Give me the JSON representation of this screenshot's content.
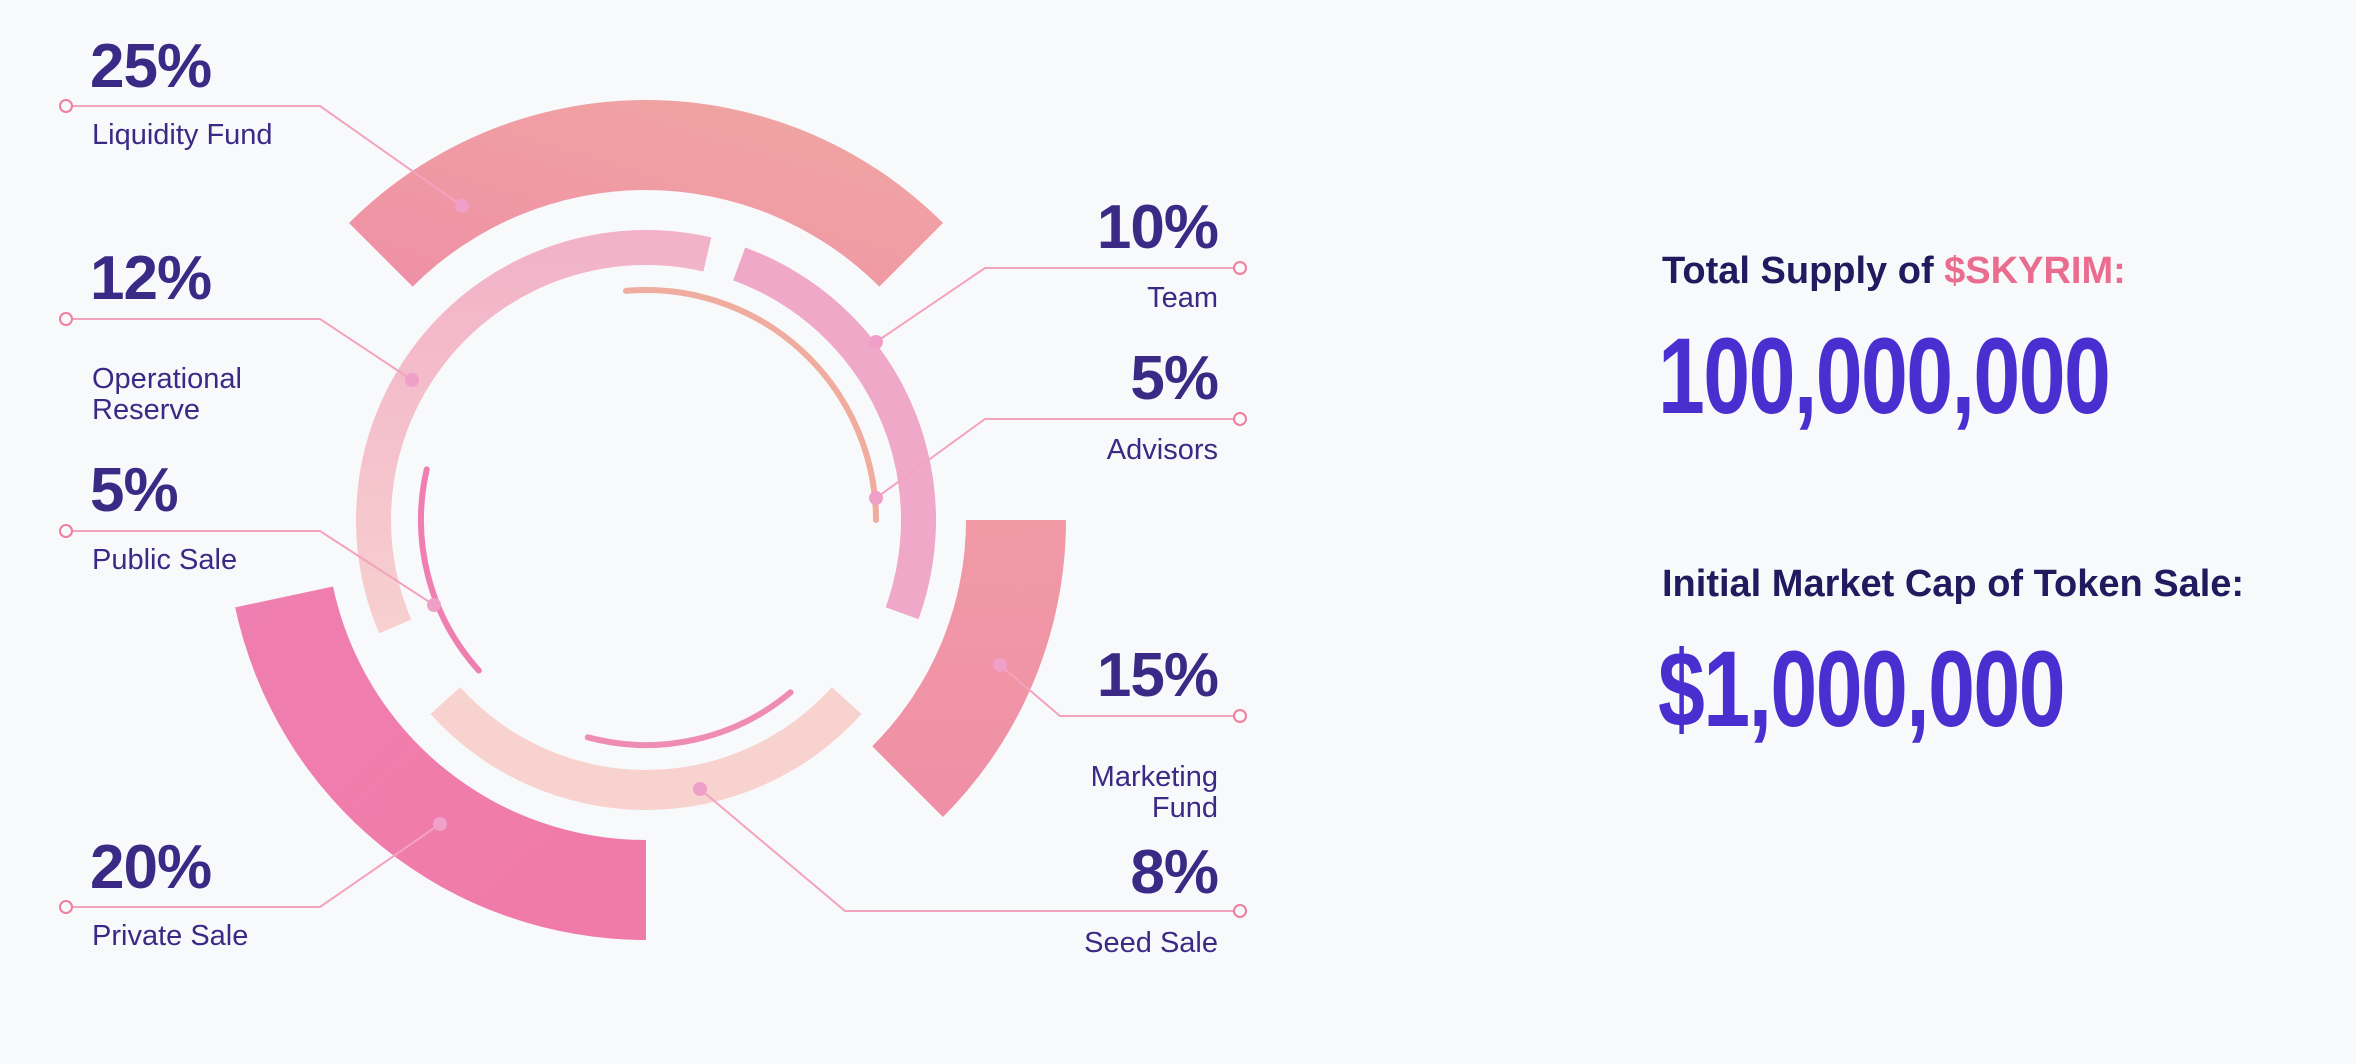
{
  "chart_data": {
    "type": "donut",
    "slices": [
      {
        "label": "Liquidity Fund",
        "percent_text": "25%",
        "value": 25
      },
      {
        "label": "Operational Reserve",
        "percent_text": "12%",
        "value": 12
      },
      {
        "label": "Public Sale",
        "percent_text": "5%",
        "value": 5
      },
      {
        "label": "Private Sale",
        "percent_text": "20%",
        "value": 20
      },
      {
        "label": "Team",
        "percent_text": "10%",
        "value": 10
      },
      {
        "label": "Advisors",
        "percent_text": "5%",
        "value": 5
      },
      {
        "label": "Marketing Fund",
        "percent_text": "15%",
        "value": 15
      },
      {
        "label": "Seed Sale",
        "percent_text": "8%",
        "value": 8
      }
    ]
  },
  "colors": {
    "heading": "#22195e",
    "accent": "#ea6d8f",
    "value": "#4a2fd0",
    "label": "#3a2a85",
    "leader_line": "#f3a3bd"
  },
  "info": {
    "supply_heading_prefix": "Total Supply of ",
    "supply_token": "$SKYRIM:",
    "supply_value": "100,000,000",
    "cap_heading": "Initial Market Cap of Token Sale:",
    "cap_value": "$1,000,000"
  }
}
